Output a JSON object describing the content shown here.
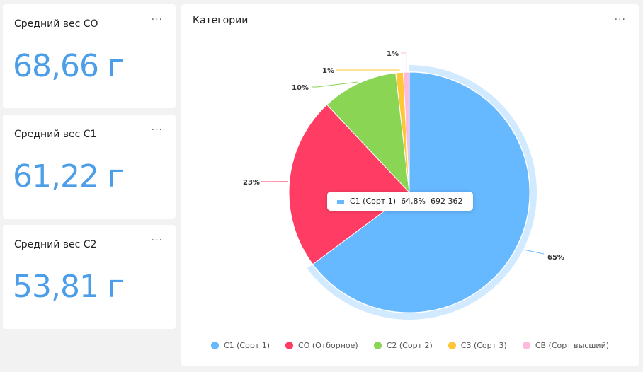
{
  "kpis": [
    {
      "title": "Средний вес СО",
      "value": "68,66 г"
    },
    {
      "title": "Средний вес С1",
      "value": "61,22 г"
    },
    {
      "title": "Средний вес С2",
      "value": "53,81 г"
    }
  ],
  "menu_icon": "···",
  "tooltip": {
    "label": "С1 (Сорт 1)",
    "percent": "64,8%",
    "value": "692 362"
  },
  "chart_data": {
    "type": "pie",
    "title": "Категории",
    "categories": [
      "С1 (Сорт 1)",
      "СО (Отборное)",
      "С2 (Сорт 2)",
      "С3 (Сорт 3)",
      "СВ (Сорт высший)"
    ],
    "values": [
      64.8,
      23.2,
      10.2,
      1.0,
      0.8
    ],
    "labels": [
      "65%",
      "23%",
      "10%",
      "1%",
      "1%"
    ],
    "colors": [
      "#66b8ff",
      "#ff3d64",
      "#8ad554",
      "#ffc636",
      "#ffb9dd"
    ],
    "highlighted": "С1 (Сорт 1)",
    "legend": "bottom"
  }
}
